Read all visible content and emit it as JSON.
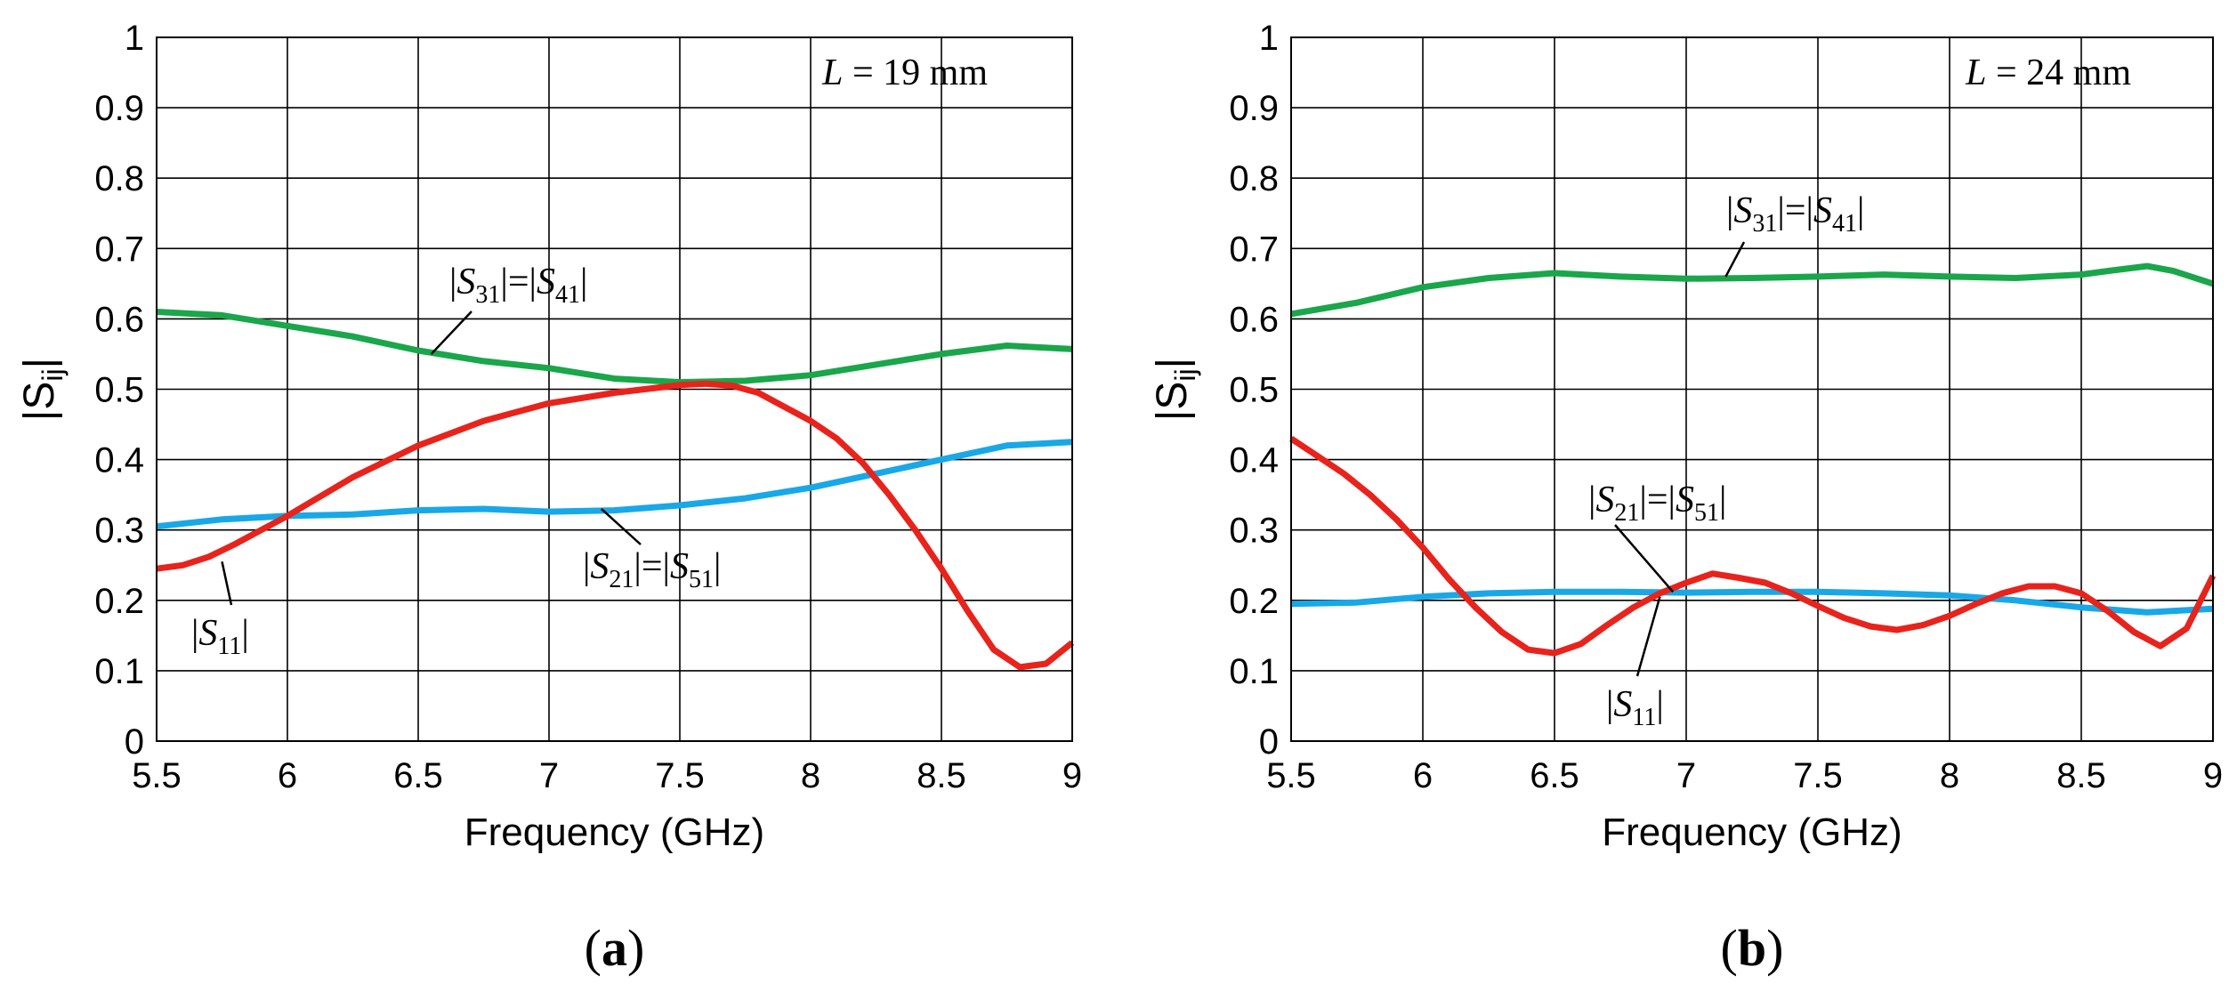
{
  "chart_data": [
    {
      "type": "line",
      "panel_label": "(a)",
      "annotation": {
        "italic": "L",
        "text": " = 19 mm"
      },
      "xlabel": "Frequency (GHz)",
      "ylabel": "|S",
      "ylabel_sub": "ij",
      "ylabel_end": "|",
      "xlim": [
        5.5,
        9
      ],
      "ylim": [
        0,
        1
      ],
      "grid": true,
      "xticks": [
        5.5,
        6,
        6.5,
        7,
        7.5,
        8,
        8.5,
        9
      ],
      "xtick_labels": [
        "5.5",
        "6",
        "6.5",
        "7",
        "7.5",
        "8",
        "8.5",
        "9"
      ],
      "yticks": [
        0,
        0.1,
        0.2,
        0.3,
        0.4,
        0.5,
        0.6,
        0.7,
        0.8,
        0.9,
        1
      ],
      "ytick_labels": [
        "0",
        "0.1",
        "0.2",
        "0.3",
        "0.4",
        "0.5",
        "0.6",
        "0.7",
        "0.8",
        "0.9",
        "1"
      ],
      "series": [
        {
          "name": "|S31|=|S41|",
          "color": "#1aa64a",
          "x": [
            5.5,
            5.75,
            6.0,
            6.25,
            6.5,
            6.75,
            7.0,
            7.25,
            7.5,
            7.75,
            8.0,
            8.25,
            8.5,
            8.75,
            9.0
          ],
          "y": [
            0.61,
            0.605,
            0.59,
            0.575,
            0.555,
            0.54,
            0.53,
            0.515,
            0.51,
            0.512,
            0.52,
            0.535,
            0.55,
            0.562,
            0.557
          ]
        },
        {
          "name": "|S21|=|S51|",
          "color": "#18a8e8",
          "x": [
            5.5,
            5.75,
            6.0,
            6.25,
            6.5,
            6.75,
            7.0,
            7.25,
            7.5,
            7.75,
            8.0,
            8.25,
            8.5,
            8.75,
            9.0
          ],
          "y": [
            0.305,
            0.315,
            0.32,
            0.322,
            0.328,
            0.33,
            0.326,
            0.328,
            0.335,
            0.345,
            0.36,
            0.38,
            0.4,
            0.42,
            0.425
          ]
        },
        {
          "name": "|S11|",
          "color": "#e8231c",
          "x": [
            5.5,
            5.6,
            5.7,
            5.8,
            5.9,
            6.0,
            6.25,
            6.5,
            6.75,
            7.0,
            7.25,
            7.5,
            7.6,
            7.7,
            7.8,
            8.0,
            8.1,
            8.2,
            8.3,
            8.4,
            8.5,
            8.6,
            8.7,
            8.8,
            8.9,
            9.0
          ],
          "y": [
            0.245,
            0.25,
            0.262,
            0.28,
            0.3,
            0.32,
            0.375,
            0.42,
            0.455,
            0.48,
            0.495,
            0.506,
            0.508,
            0.505,
            0.495,
            0.455,
            0.43,
            0.395,
            0.35,
            0.3,
            0.245,
            0.185,
            0.13,
            0.105,
            0.11,
            0.14
          ]
        }
      ],
      "annotations": [
        {
          "base": "|S",
          "sub": "31",
          "mid": "|=|S",
          "sub2": "41",
          "end": "|",
          "target": [
            6.55,
            0.55
          ]
        },
        {
          "base": "|S",
          "sub": "21",
          "mid": "|=|S",
          "sub2": "51",
          "end": "|",
          "target": [
            7.2,
            0.33
          ]
        },
        {
          "base": "|S",
          "sub": "11",
          "mid": "",
          "sub2": "",
          "end": "|",
          "target": [
            5.75,
            0.255
          ]
        }
      ]
    },
    {
      "type": "line",
      "panel_label": "(b)",
      "annotation": {
        "italic": "L",
        "text": " = 24 mm"
      },
      "xlabel": "Frequency (GHz)",
      "ylabel": "|S",
      "ylabel_sub": "ij",
      "ylabel_end": "|",
      "xlim": [
        5.5,
        9
      ],
      "ylim": [
        0,
        1
      ],
      "grid": true,
      "xticks": [
        5.5,
        6,
        6.5,
        7,
        7.5,
        8,
        8.5,
        9
      ],
      "xtick_labels": [
        "5.5",
        "6",
        "6.5",
        "7",
        "7.5",
        "8",
        "8.5",
        "9"
      ],
      "yticks": [
        0,
        0.1,
        0.2,
        0.3,
        0.4,
        0.5,
        0.6,
        0.7,
        0.8,
        0.9,
        1
      ],
      "ytick_labels": [
        "0",
        "0.1",
        "0.2",
        "0.3",
        "0.4",
        "0.5",
        "0.6",
        "0.7",
        "0.8",
        "0.9",
        "1"
      ],
      "series": [
        {
          "name": "|S31|=|S41|",
          "color": "#1aa64a",
          "x": [
            5.5,
            5.75,
            6.0,
            6.25,
            6.5,
            6.75,
            7.0,
            7.25,
            7.5,
            7.75,
            8.0,
            8.25,
            8.5,
            8.6,
            8.75,
            8.85,
            9.0
          ],
          "y": [
            0.607,
            0.623,
            0.645,
            0.658,
            0.665,
            0.66,
            0.657,
            0.658,
            0.66,
            0.663,
            0.66,
            0.658,
            0.663,
            0.668,
            0.675,
            0.668,
            0.65
          ]
        },
        {
          "name": "|S21|=|S51|",
          "color": "#18a8e8",
          "x": [
            5.5,
            5.75,
            6.0,
            6.25,
            6.5,
            6.75,
            7.0,
            7.25,
            7.5,
            7.75,
            8.0,
            8.25,
            8.5,
            8.75,
            9.0
          ],
          "y": [
            0.195,
            0.197,
            0.205,
            0.21,
            0.212,
            0.212,
            0.211,
            0.212,
            0.212,
            0.21,
            0.207,
            0.2,
            0.19,
            0.183,
            0.188
          ]
        },
        {
          "name": "|S11|",
          "color": "#e8231c",
          "x": [
            5.5,
            5.6,
            5.7,
            5.8,
            5.9,
            6.0,
            6.1,
            6.2,
            6.3,
            6.4,
            6.5,
            6.6,
            6.7,
            6.8,
            6.9,
            7.0,
            7.1,
            7.2,
            7.3,
            7.4,
            7.5,
            7.6,
            7.7,
            7.8,
            7.9,
            8.0,
            8.1,
            8.2,
            8.3,
            8.4,
            8.5,
            8.6,
            8.7,
            8.8,
            8.9,
            9.0
          ],
          "y": [
            0.43,
            0.405,
            0.38,
            0.35,
            0.315,
            0.275,
            0.23,
            0.19,
            0.155,
            0.13,
            0.125,
            0.138,
            0.165,
            0.19,
            0.21,
            0.225,
            0.238,
            0.232,
            0.225,
            0.21,
            0.192,
            0.175,
            0.163,
            0.158,
            0.165,
            0.178,
            0.195,
            0.21,
            0.22,
            0.22,
            0.21,
            0.185,
            0.155,
            0.135,
            0.16,
            0.235
          ]
        }
      ],
      "annotations": [
        {
          "base": "|S",
          "sub": "31",
          "mid": "|=|S",
          "sub2": "41",
          "end": "|",
          "target": [
            7.15,
            0.66
          ]
        },
        {
          "base": "|S",
          "sub": "21",
          "mid": "|=|S",
          "sub2": "51",
          "end": "|",
          "target": [
            6.95,
            0.212
          ]
        },
        {
          "base": "|S",
          "sub": "11",
          "mid": "",
          "sub2": "",
          "end": "|",
          "target": [
            6.9,
            0.205
          ]
        }
      ]
    }
  ],
  "colors": {
    "grid": "#000000",
    "background": "#ffffff"
  }
}
